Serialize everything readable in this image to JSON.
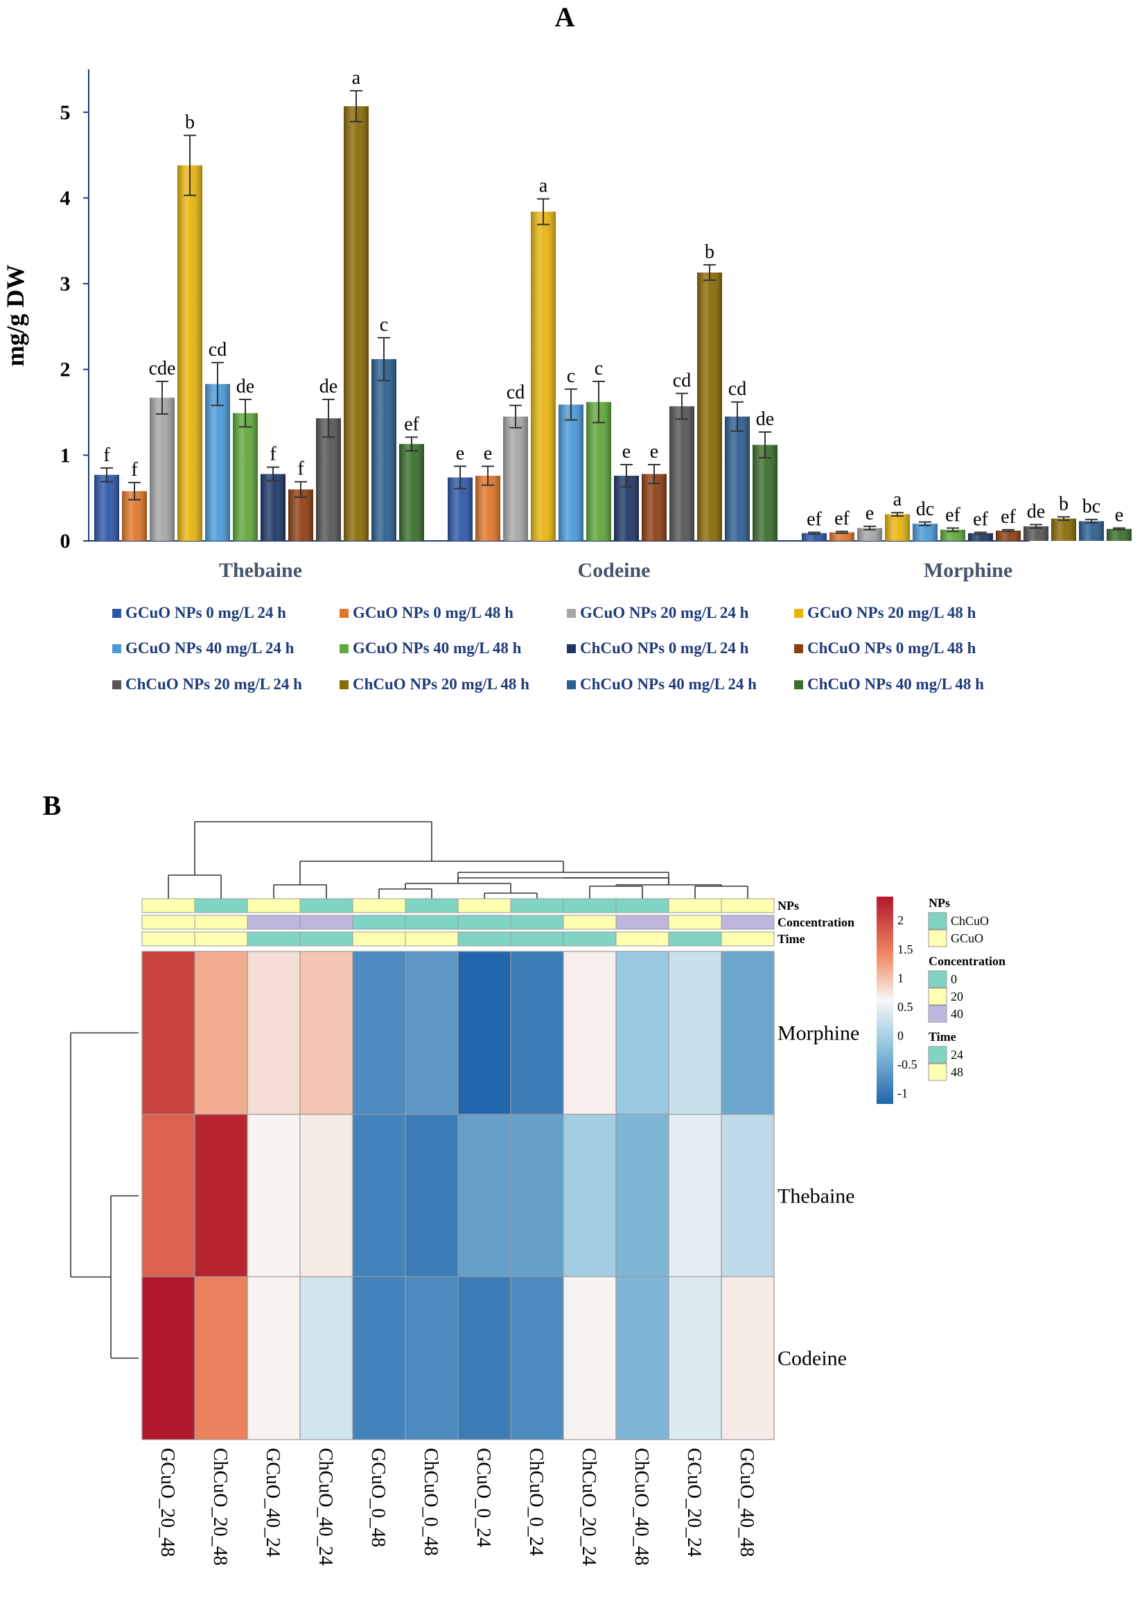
{
  "chart_data": [
    {
      "type": "bar",
      "panel_label": "A",
      "ylabel": "mg/g DW",
      "ylim": [
        0,
        5.5
      ],
      "yticks": [
        0,
        1,
        2,
        3,
        4,
        5
      ],
      "groups": [
        "Thebaine",
        "Codeine",
        "Morphine"
      ],
      "series": [
        {
          "name": "GCuO NPs 0 mg/L 24 h",
          "color": "#2e56a8",
          "values": [
            0.77,
            0.74,
            0.09
          ],
          "errors": [
            0.08,
            0.13,
            0.01
          ],
          "letters": [
            "f",
            "e",
            "ef"
          ]
        },
        {
          "name": "GCuO NPs 0 mg/L 48 h",
          "color": "#e0762a",
          "values": [
            0.58,
            0.76,
            0.1
          ],
          "errors": [
            0.1,
            0.11,
            0.01
          ],
          "letters": [
            "f",
            "e",
            "ef"
          ]
        },
        {
          "name": "GCuO NPs 20 mg/L 24 h",
          "color": "#a6a6a6",
          "values": [
            1.67,
            1.45,
            0.15
          ],
          "errors": [
            0.19,
            0.13,
            0.02
          ],
          "letters": [
            "cde",
            "cd",
            "e"
          ]
        },
        {
          "name": "GCuO NPs 20 mg/L 48 h",
          "color": "#e8b50e",
          "values": [
            4.38,
            3.84,
            0.31
          ],
          "errors": [
            0.35,
            0.15,
            0.02
          ],
          "letters": [
            "b",
            "a",
            "a"
          ]
        },
        {
          "name": "GCuO NPs 40 mg/L 24 h",
          "color": "#4a9ad8",
          "values": [
            1.83,
            1.59,
            0.2
          ],
          "errors": [
            0.25,
            0.18,
            0.02
          ],
          "letters": [
            "cd",
            "c",
            "dc"
          ]
        },
        {
          "name": "GCuO NPs 40 mg/L 48 h",
          "color": "#5fa83a",
          "values": [
            1.49,
            1.62,
            0.13
          ],
          "errors": [
            0.16,
            0.24,
            0.02
          ],
          "letters": [
            "de",
            "c",
            "ef"
          ]
        },
        {
          "name": "ChCuO NPs 0 mg/L 24 h",
          "color": "#1e3768",
          "values": [
            0.78,
            0.76,
            0.09
          ],
          "errors": [
            0.08,
            0.13,
            0.01
          ],
          "letters": [
            "f",
            "e",
            "ef"
          ]
        },
        {
          "name": "ChCuO NPs 0 mg/L 48 h",
          "color": "#8e3f12",
          "values": [
            0.6,
            0.78,
            0.12
          ],
          "errors": [
            0.09,
            0.11,
            0.01
          ],
          "letters": [
            "f",
            "e",
            "ef"
          ]
        },
        {
          "name": "ChCuO NPs 20 mg/L 24 h",
          "color": "#555555",
          "values": [
            1.43,
            1.57,
            0.17
          ],
          "errors": [
            0.22,
            0.15,
            0.02
          ],
          "letters": [
            "de",
            "cd",
            "de"
          ]
        },
        {
          "name": "ChCuO NPs 20 mg/L 48 h",
          "color": "#8a6a06",
          "values": [
            5.07,
            3.13,
            0.26
          ],
          "errors": [
            0.18,
            0.09,
            0.02
          ],
          "letters": [
            "a",
            "b",
            "b"
          ]
        },
        {
          "name": "ChCuO NPs 40 mg/L 24 h",
          "color": "#2c5e8f",
          "values": [
            2.12,
            1.45,
            0.23
          ],
          "errors": [
            0.25,
            0.17,
            0.02
          ],
          "letters": [
            "c",
            "cd",
            "bc"
          ]
        },
        {
          "name": "ChCuO NPs 40 mg/L 48 h",
          "color": "#3b6e2b",
          "values": [
            1.13,
            1.12,
            0.14
          ],
          "errors": [
            0.08,
            0.15,
            0.01
          ],
          "letters": [
            "ef",
            "de",
            "e"
          ]
        }
      ]
    },
    {
      "type": "heatmap",
      "panel_label": "B",
      "rows": [
        "Morphine",
        "Thebaine",
        "Codeine"
      ],
      "columns": [
        "GCuO_20_48",
        "ChCuO_20_48",
        "GCuO_40_24",
        "ChCuO_40_24",
        "GCuO_0_48",
        "ChCuO_0_48",
        "GCuO_0_24",
        "ChCuO_0_24",
        "ChCuO_20_24",
        "ChCuO_40_48",
        "GCuO_20_24",
        "GCuO_40_48"
      ],
      "values": [
        [
          2.0,
          0.9,
          0.3,
          0.6,
          -0.95,
          -0.85,
          -1.2,
          -1.05,
          0.1,
          -0.5,
          -0.25,
          -0.75
        ],
        [
          1.7,
          2.3,
          0.05,
          0.15,
          -1.0,
          -1.05,
          -0.8,
          -0.8,
          -0.45,
          -0.65,
          -0.1,
          -0.3
        ],
        [
          2.4,
          1.4,
          0.05,
          -0.2,
          -1.0,
          -0.95,
          -1.05,
          -0.95,
          0.05,
          -0.65,
          -0.15,
          0.15
        ]
      ],
      "range": [
        -1.2,
        2.4
      ],
      "colorbar_ticks": [
        "2",
        "1.5",
        "1",
        "0.5",
        "0",
        "-0.5",
        "-1"
      ],
      "annotation_tracks": [
        "NPs",
        "Concentration",
        "Time"
      ],
      "annotations": {
        "NPs": [
          "GCuO",
          "ChCuO",
          "GCuO",
          "ChCuO",
          "GCuO",
          "ChCuO",
          "GCuO",
          "ChCuO",
          "ChCuO",
          "ChCuO",
          "GCuO",
          "GCuO"
        ],
        "Concentration": [
          "20",
          "20",
          "40",
          "40",
          "0",
          "0",
          "0",
          "0",
          "20",
          "40",
          "20",
          "40"
        ],
        "Time": [
          "48",
          "48",
          "24",
          "24",
          "48",
          "48",
          "24",
          "24",
          "24",
          "48",
          "24",
          "48"
        ]
      },
      "legend": {
        "NPs": {
          "title": "NPs",
          "items": [
            {
              "label": "ChCuO",
              "color": "#7fd4c4"
            },
            {
              "label": "GCuO",
              "color": "#ffffb0"
            }
          ]
        },
        "Concentration": {
          "title": "Concentration",
          "items": [
            {
              "label": "0",
              "color": "#7fd4c4"
            },
            {
              "label": "20",
              "color": "#ffffb0"
            },
            {
              "label": "40",
              "color": "#beb6dc"
            }
          ]
        },
        "Time": {
          "title": "Time",
          "items": [
            {
              "label": "24",
              "color": "#7fd4c4"
            },
            {
              "label": "48",
              "color": "#ffffb0"
            }
          ]
        }
      }
    }
  ]
}
